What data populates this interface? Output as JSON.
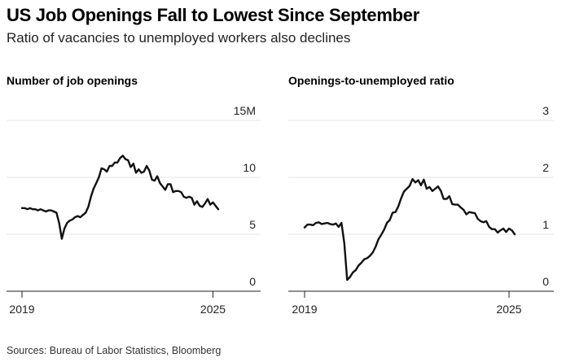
{
  "title": "US Job Openings Fall to Lowest Since September",
  "subtitle": "Ratio of vacancies to unemployed workers also declines",
  "source": "Sources: Bureau of Labor Statistics, Bloomberg",
  "chart_data": [
    {
      "type": "line",
      "title": "Number of job openings",
      "xlabel": "",
      "ylabel": "",
      "x_ticks": [
        "2019",
        "2025"
      ],
      "xlim": [
        "2019-01",
        "2025-03"
      ],
      "ylim": [
        0,
        15
      ],
      "y_ticks": [
        0,
        5,
        10,
        15
      ],
      "y_tick_labels": [
        "0",
        "5",
        "10",
        "15M"
      ],
      "grid": true,
      "series": [
        {
          "color": "#111111",
          "x": [
            "2019-01",
            "2019-02",
            "2019-03",
            "2019-04",
            "2019-05",
            "2019-06",
            "2019-07",
            "2019-08",
            "2019-09",
            "2019-10",
            "2019-11",
            "2019-12",
            "2020-01",
            "2020-02",
            "2020-03",
            "2020-04",
            "2020-05",
            "2020-06",
            "2020-07",
            "2020-08",
            "2020-09",
            "2020-10",
            "2020-11",
            "2020-12",
            "2021-01",
            "2021-02",
            "2021-03",
            "2021-04",
            "2021-05",
            "2021-06",
            "2021-07",
            "2021-08",
            "2021-09",
            "2021-10",
            "2021-11",
            "2021-12",
            "2022-01",
            "2022-02",
            "2022-03",
            "2022-04",
            "2022-05",
            "2022-06",
            "2022-07",
            "2022-08",
            "2022-09",
            "2022-10",
            "2022-11",
            "2022-12",
            "2023-01",
            "2023-02",
            "2023-03",
            "2023-04",
            "2023-05",
            "2023-06",
            "2023-07",
            "2023-08",
            "2023-09",
            "2023-10",
            "2023-11",
            "2023-12",
            "2024-01",
            "2024-02",
            "2024-03",
            "2024-04",
            "2024-05",
            "2024-06",
            "2024-07",
            "2024-08",
            "2024-09",
            "2024-10",
            "2024-11",
            "2024-12",
            "2025-01",
            "2025-02",
            "2025-03"
          ],
          "values": [
            7.3,
            7.3,
            7.2,
            7.3,
            7.2,
            7.2,
            7.1,
            7.2,
            7.1,
            7.0,
            7.1,
            7.1,
            7.0,
            6.9,
            6.0,
            4.6,
            5.5,
            6.0,
            6.2,
            6.3,
            6.5,
            6.6,
            6.5,
            6.7,
            6.9,
            7.4,
            8.3,
            9.0,
            9.5,
            10.0,
            10.8,
            10.7,
            10.5,
            11.0,
            11.0,
            11.3,
            11.3,
            11.7,
            11.9,
            11.6,
            11.5,
            10.9,
            11.2,
            10.4,
            10.7,
            10.4,
            10.5,
            11.0,
            10.6,
            9.8,
            9.7,
            10.1,
            9.5,
            9.2,
            8.9,
            9.4,
            9.4,
            8.7,
            8.8,
            8.8,
            8.7,
            8.3,
            8.2,
            8.3,
            8.2,
            7.6,
            7.9,
            7.5,
            7.4,
            7.7,
            8.1,
            7.6,
            7.8,
            7.5,
            7.2
          ]
        }
      ]
    },
    {
      "type": "line",
      "title": "Openings-to-unemployed ratio",
      "xlabel": "",
      "ylabel": "",
      "x_ticks": [
        "2019",
        "2025"
      ],
      "xlim": [
        "2019-01",
        "2025-03"
      ],
      "ylim": [
        0,
        3
      ],
      "y_ticks": [
        0,
        1,
        2,
        3
      ],
      "y_tick_labels": [
        "0",
        "1",
        "2",
        "3"
      ],
      "grid": true,
      "series": [
        {
          "color": "#111111",
          "x": [
            "2019-01",
            "2019-02",
            "2019-03",
            "2019-04",
            "2019-05",
            "2019-06",
            "2019-07",
            "2019-08",
            "2019-09",
            "2019-10",
            "2019-11",
            "2019-12",
            "2020-01",
            "2020-02",
            "2020-03",
            "2020-04",
            "2020-05",
            "2020-06",
            "2020-07",
            "2020-08",
            "2020-09",
            "2020-10",
            "2020-11",
            "2020-12",
            "2021-01",
            "2021-02",
            "2021-03",
            "2021-04",
            "2021-05",
            "2021-06",
            "2021-07",
            "2021-08",
            "2021-09",
            "2021-10",
            "2021-11",
            "2021-12",
            "2022-01",
            "2022-02",
            "2022-03",
            "2022-04",
            "2022-05",
            "2022-06",
            "2022-07",
            "2022-08",
            "2022-09",
            "2022-10",
            "2022-11",
            "2022-12",
            "2023-01",
            "2023-02",
            "2023-03",
            "2023-04",
            "2023-05",
            "2023-06",
            "2023-07",
            "2023-08",
            "2023-09",
            "2023-10",
            "2023-11",
            "2023-12",
            "2024-01",
            "2024-02",
            "2024-03",
            "2024-04",
            "2024-05",
            "2024-06",
            "2024-07",
            "2024-08",
            "2024-09",
            "2024-10",
            "2024-11",
            "2024-12",
            "2025-01",
            "2025-02",
            "2025-03"
          ],
          "values": [
            1.12,
            1.17,
            1.17,
            1.16,
            1.2,
            1.21,
            1.18,
            1.19,
            1.2,
            1.18,
            1.17,
            1.19,
            1.13,
            1.2,
            0.84,
            0.2,
            0.25,
            0.33,
            0.37,
            0.45,
            0.5,
            0.56,
            0.58,
            0.62,
            0.68,
            0.78,
            0.91,
            0.99,
            1.08,
            1.2,
            1.25,
            1.38,
            1.39,
            1.49,
            1.63,
            1.75,
            1.8,
            1.85,
            1.97,
            1.91,
            1.95,
            1.86,
            1.96,
            1.8,
            1.83,
            1.76,
            1.8,
            1.84,
            1.76,
            1.62,
            1.62,
            1.67,
            1.53,
            1.52,
            1.52,
            1.47,
            1.43,
            1.35,
            1.39,
            1.38,
            1.37,
            1.27,
            1.23,
            1.21,
            1.23,
            1.13,
            1.09,
            1.09,
            1.03,
            1.07,
            1.1,
            1.04,
            1.1,
            1.07,
            1.0
          ]
        }
      ]
    }
  ]
}
